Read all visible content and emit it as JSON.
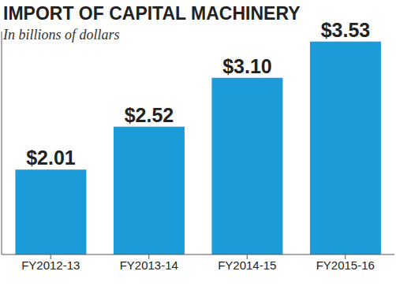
{
  "chart_data": {
    "type": "bar",
    "title": "IMPORT OF CAPITAL MACHINERY",
    "subtitle": "In billions of dollars",
    "categories": [
      "FY2012-13",
      "FY2013-14",
      "FY2014-15",
      "FY2015-16"
    ],
    "values": [
      2.01,
      2.52,
      3.1,
      3.53
    ],
    "value_labels": [
      "$2.01",
      "$2.52",
      "$3.10",
      "$3.53"
    ],
    "color": "#1b9bd7",
    "ylim": [
      1,
      3.65
    ],
    "data_labels": true,
    "tick_labels": "x",
    "grid": false
  }
}
